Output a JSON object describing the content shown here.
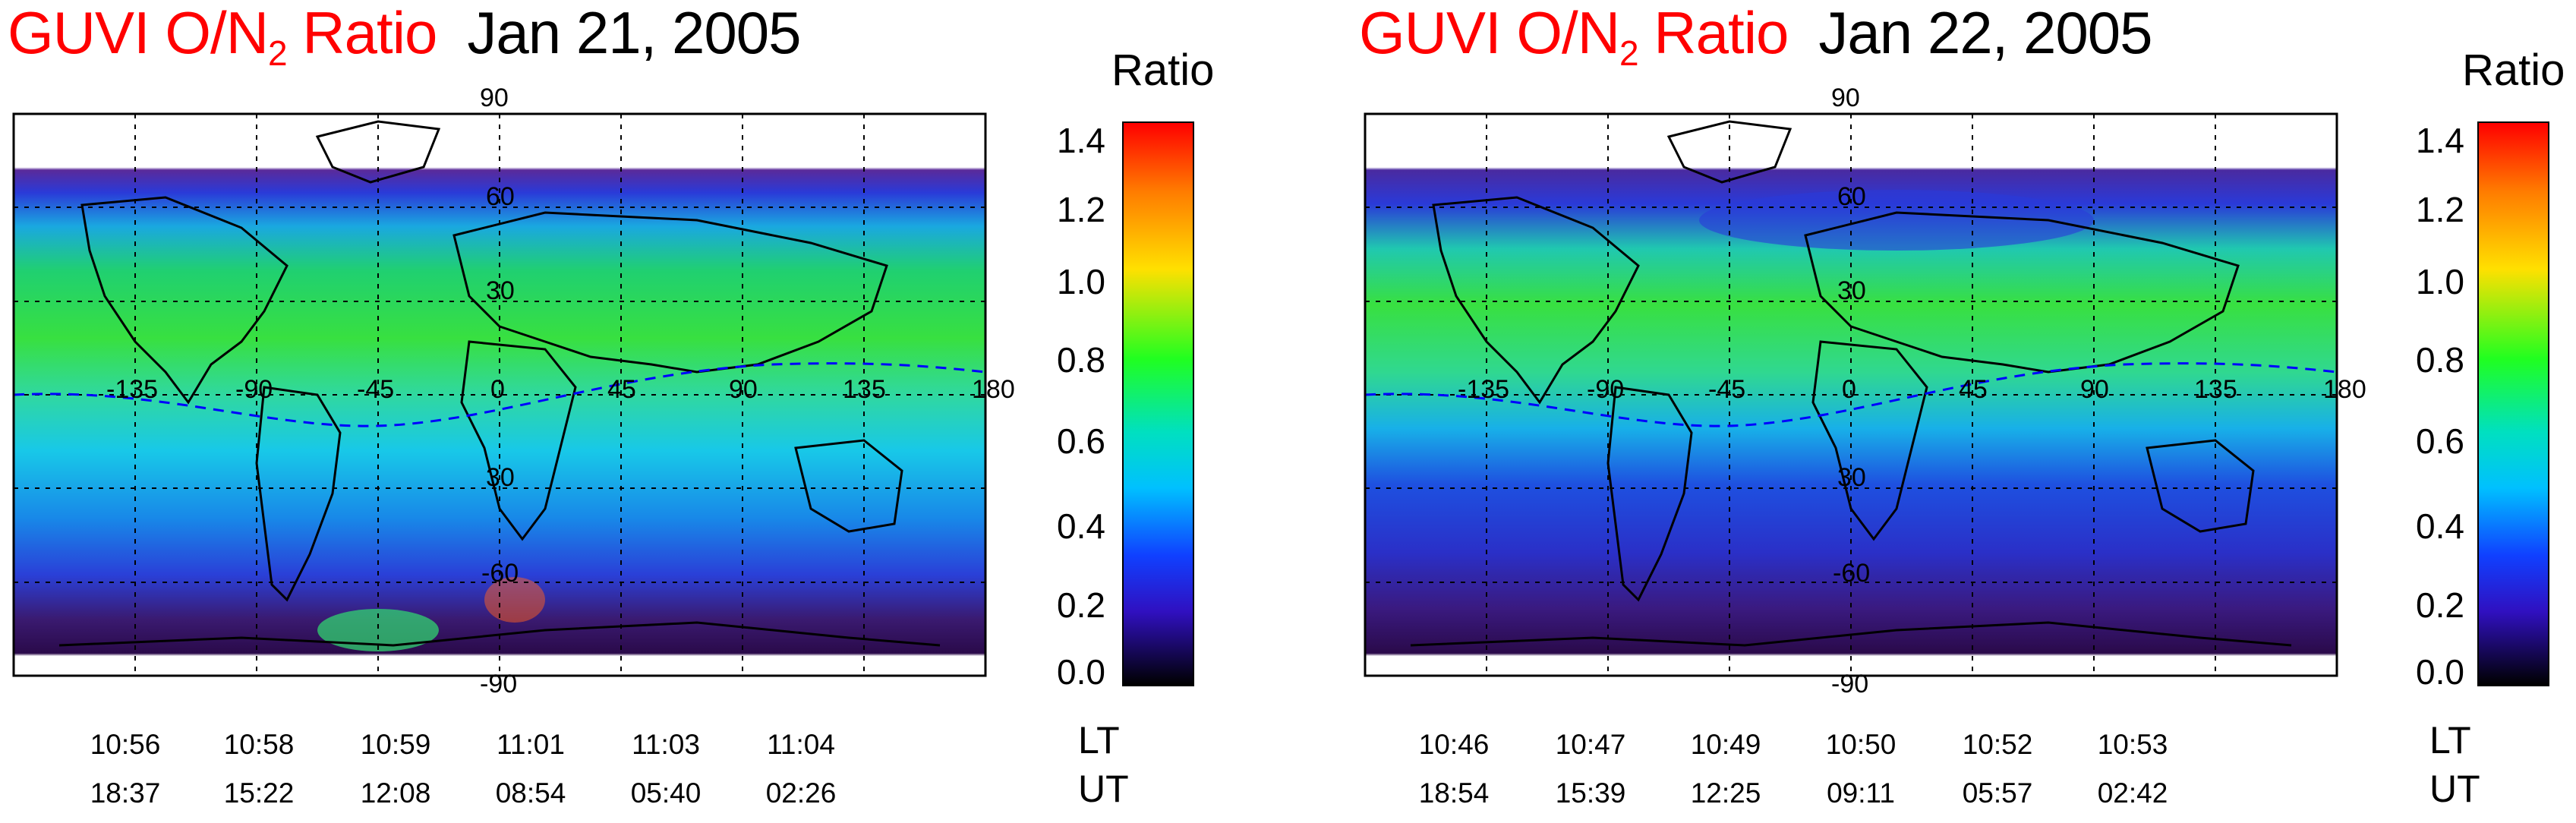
{
  "panels": [
    {
      "title_prefix": "GUVI  O/N",
      "title_sub": "2",
      "title_suffix": " Ratio",
      "date": "Jan 21,  2005",
      "lt": [
        "10:56",
        "10:58",
        "10:59",
        "11:01",
        "11:03",
        "11:04"
      ],
      "ut": [
        "18:37",
        "15:22",
        "12:08",
        "08:54",
        "05:40",
        "02:26"
      ]
    },
    {
      "title_prefix": "GUVI  O/N",
      "title_sub": "2",
      "title_suffix": " Ratio",
      "date": "Jan 22,  2005",
      "lt": [
        "10:46",
        "10:47",
        "10:49",
        "10:50",
        "10:52",
        "10:53"
      ],
      "ut": [
        "18:54",
        "15:39",
        "12:25",
        "09:11",
        "05:57",
        "02:42"
      ]
    }
  ],
  "map_labels": {
    "lat_top": "90",
    "lat_60": "60",
    "lat_30n": "30",
    "lat_30s": "30",
    "lat_60s": "-60",
    "lat_bottom": "-90",
    "lon": [
      "-135",
      "-90",
      "-45",
      "0",
      "45",
      "90",
      "135",
      "180"
    ]
  },
  "colorbar": {
    "title": "Ratio",
    "ticks": [
      "1.4",
      "1.2",
      "1.0",
      "0.8",
      "0.6",
      "0.4",
      "0.2",
      "0.0"
    ],
    "colors": [
      "#ff0000",
      "#ff8c00",
      "#ffff00",
      "#00ff00",
      "#00ffff",
      "#0000ff",
      "#4b0082",
      "#000000"
    ]
  },
  "row_labels": {
    "lt": "LT",
    "ut": "UT"
  },
  "colors": {
    "title_red": "#ff0000",
    "magnetic_equator": "#0000ff"
  }
}
